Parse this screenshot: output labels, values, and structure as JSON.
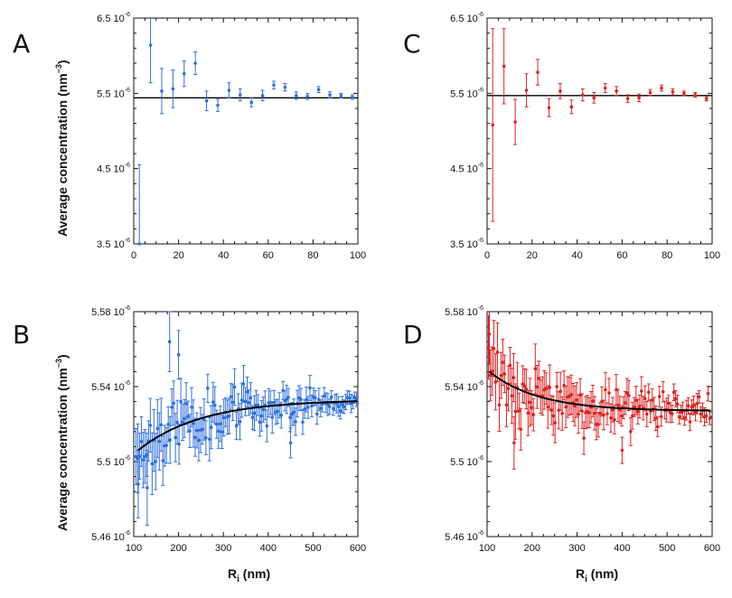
{
  "figure": {
    "ylabel_main": "Average concentration (nm",
    "ylabel_sup": "−3",
    "ylabel_tail": ")",
    "xlabel_main": "R",
    "xlabel_sub": "i",
    "xlabel_tail": " (nm)"
  },
  "chart_data": [
    {
      "panel": "A",
      "type": "scatter",
      "color": "#2f6fe0",
      "xlim": [
        0,
        100
      ],
      "ylim": [
        3.5e-06,
        6.5e-06
      ],
      "xticks": [
        0,
        20,
        40,
        60,
        80,
        100
      ],
      "yticks": [
        {
          "value": 3.5e-06,
          "mant": "3.5 10",
          "exp": "-6"
        },
        {
          "value": 4.5e-06,
          "mant": "4.5 10",
          "exp": "-6"
        },
        {
          "value": 5.5e-06,
          "mant": "5.5 10",
          "exp": "-6"
        },
        {
          "value": 6.5e-06,
          "mant": "6.5 10",
          "exp": "-6"
        }
      ],
      "fit": {
        "kind": "constant",
        "value": 5.44e-06
      },
      "points": [
        [
          2.5,
          3.5e-06,
          1.05e-06
        ],
        [
          7.5,
          6.14e-06,
          5e-07
        ],
        [
          12.5,
          5.53e-06,
          3e-07
        ],
        [
          17.5,
          5.56e-06,
          2.5e-07
        ],
        [
          22.5,
          5.76e-06,
          1.7e-07
        ],
        [
          27.5,
          5.9e-06,
          1.5e-07
        ],
        [
          32.5,
          5.4e-06,
          1.3e-07
        ],
        [
          37.5,
          5.34e-06,
          8e-08
        ],
        [
          42.5,
          5.54e-06,
          1e-07
        ],
        [
          47.5,
          5.48e-06,
          8e-08
        ],
        [
          52.5,
          5.38e-06,
          6e-08
        ],
        [
          57.5,
          5.47e-06,
          7e-08
        ],
        [
          62.5,
          5.61e-06,
          5e-08
        ],
        [
          67.5,
          5.58e-06,
          5e-08
        ],
        [
          72.5,
          5.47e-06,
          5e-08
        ],
        [
          77.5,
          5.46e-06,
          4e-08
        ],
        [
          82.5,
          5.55e-06,
          4e-08
        ],
        [
          87.5,
          5.48e-06,
          4e-08
        ],
        [
          92.5,
          5.47e-06,
          3e-08
        ],
        [
          97.5,
          5.45e-06,
          3e-08
        ]
      ]
    },
    {
      "panel": "B",
      "type": "scatter",
      "color": "#2f6fe0",
      "xlim": [
        100,
        600
      ],
      "ylim": [
        5.46e-06,
        5.58e-06
      ],
      "xticks": [
        100,
        200,
        300,
        400,
        500,
        600
      ],
      "yticks": [
        {
          "value": 5.46e-06,
          "mant": "5.46 10",
          "exp": "-6"
        },
        {
          "value": 5.5e-06,
          "mant": "5.5 10",
          "exp": "-6"
        },
        {
          "value": 5.54e-06,
          "mant": "5.54 10",
          "exp": "-6"
        },
        {
          "value": 5.58e-06,
          "mant": "5.58 10",
          "exp": "-6"
        }
      ],
      "fit": {
        "kind": "exp",
        "ainf": 5.533e-06,
        "a0": 5.506e-06,
        "x0": 110,
        "tau": 140,
        "x1": 600
      },
      "noise": {
        "x_start": 105,
        "x_step": 4,
        "count": 124,
        "sigma_start": 1.75e-08,
        "sigma_end": 3.8e-09,
        "scatter": 7e-09,
        "seed": 11
      },
      "points": [
        [
          180,
          5.564e-06,
          1.6e-08
        ],
        [
          200,
          5.557e-06,
          1.3e-08
        ],
        [
          450,
          5.51e-06,
          8e-09
        ],
        [
          110,
          5.488e-06,
          1.8e-08
        ],
        [
          130,
          5.486e-06,
          2e-08
        ]
      ]
    },
    {
      "panel": "C",
      "type": "scatter",
      "color": "#e02020",
      "xlim": [
        0,
        100
      ],
      "ylim": [
        3.5e-06,
        6.5e-06
      ],
      "xticks": [
        0,
        20,
        40,
        60,
        80,
        100
      ],
      "yticks": [
        {
          "value": 3.5e-06,
          "mant": "3.5 10",
          "exp": "-6"
        },
        {
          "value": 4.5e-06,
          "mant": "4.5 10",
          "exp": "-6"
        },
        {
          "value": 5.5e-06,
          "mant": "5.5 10",
          "exp": "-6"
        },
        {
          "value": 6.5e-06,
          "mant": "6.5 10",
          "exp": "-6"
        }
      ],
      "fit": {
        "kind": "constant",
        "value": 5.47e-06
      },
      "points": [
        [
          2.5,
          5.08e-06,
          1.28e-06
        ],
        [
          7.5,
          5.86e-06,
          5e-07
        ],
        [
          12.5,
          5.12e-06,
          3e-07
        ],
        [
          17.5,
          5.54e-06,
          2.2e-07
        ],
        [
          22.5,
          5.78e-06,
          1.7e-07
        ],
        [
          27.5,
          5.31e-06,
          1.2e-07
        ],
        [
          32.5,
          5.53e-06,
          1e-07
        ],
        [
          37.5,
          5.32e-06,
          9e-08
        ],
        [
          42.5,
          5.48e-06,
          8e-08
        ],
        [
          47.5,
          5.44e-06,
          7e-08
        ],
        [
          52.5,
          5.57e-06,
          6e-08
        ],
        [
          57.5,
          5.53e-06,
          6e-08
        ],
        [
          62.5,
          5.43e-06,
          5e-08
        ],
        [
          67.5,
          5.44e-06,
          5e-08
        ],
        [
          72.5,
          5.51e-06,
          4e-08
        ],
        [
          77.5,
          5.57e-06,
          4e-08
        ],
        [
          82.5,
          5.52e-06,
          4e-08
        ],
        [
          87.5,
          5.5e-06,
          3e-08
        ],
        [
          92.5,
          5.48e-06,
          3e-08
        ],
        [
          97.5,
          5.43e-06,
          3e-08
        ]
      ]
    },
    {
      "panel": "D",
      "type": "scatter",
      "color": "#e02020",
      "xlim": [
        100,
        600
      ],
      "ylim": [
        5.46e-06,
        5.58e-06
      ],
      "xticks": [
        100,
        200,
        300,
        400,
        500,
        600
      ],
      "yticks": [
        {
          "value": 5.46e-06,
          "mant": "5.46 10",
          "exp": "-6"
        },
        {
          "value": 5.5e-06,
          "mant": "5.5 10",
          "exp": "-6"
        },
        {
          "value": 5.54e-06,
          "mant": "5.54 10",
          "exp": "-6"
        },
        {
          "value": 5.58e-06,
          "mant": "5.58 10",
          "exp": "-6"
        }
      ],
      "fit": {
        "kind": "exp",
        "ainf": 5.527e-06,
        "a0": 5.548e-06,
        "x0": 105,
        "tau": 110,
        "x1": 600
      },
      "noise": {
        "x_start": 103,
        "x_step": 4,
        "count": 124,
        "sigma_start": 1.65e-08,
        "sigma_end": 4e-09,
        "scatter": 7.5e-09,
        "seed": 29
      },
      "points": [
        [
          400,
          5.506e-06,
          7e-09
        ],
        [
          105,
          5.568e-06,
          1.6e-08
        ],
        [
          160,
          5.51e-06,
          1.4e-08
        ]
      ]
    }
  ]
}
